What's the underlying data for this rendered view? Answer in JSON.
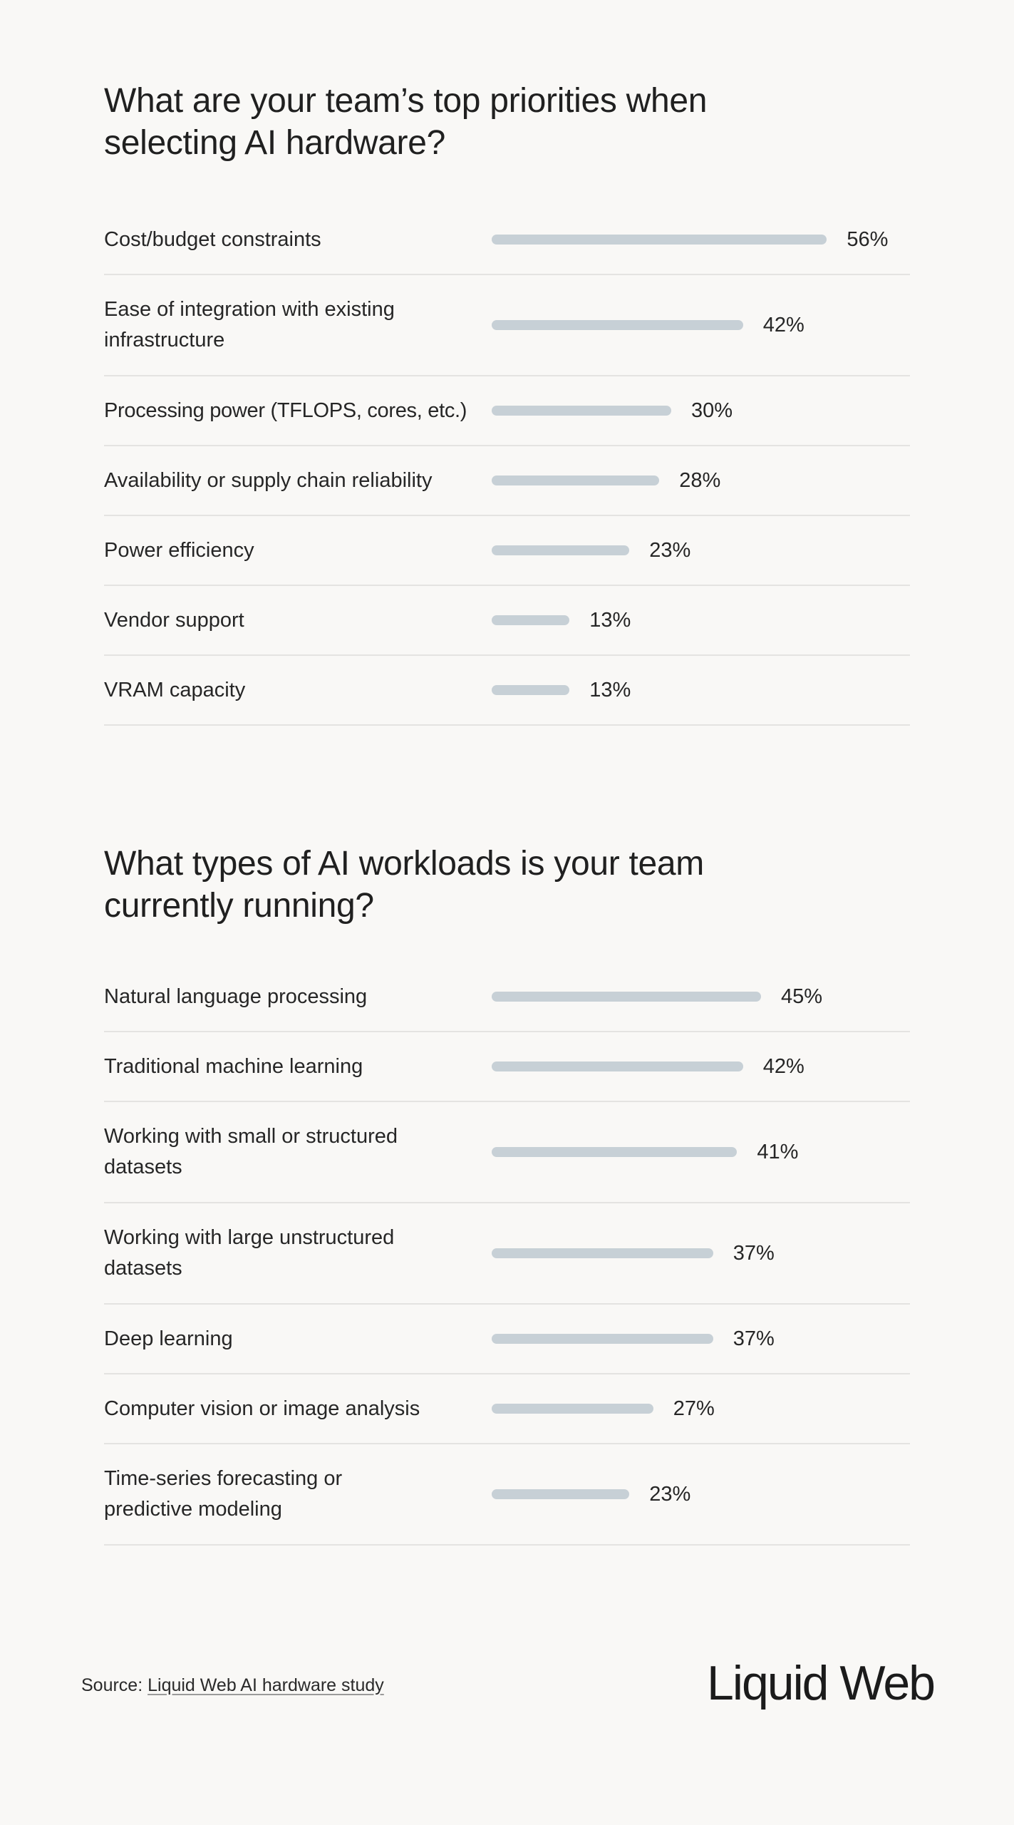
{
  "colors": {
    "background": "#f9f8f6",
    "bar": "#c7d0d6",
    "text": "#232323",
    "divider": "#e4e3e1"
  },
  "chart_data": [
    {
      "type": "bar",
      "orientation": "horizontal",
      "title": "What are your team’s top priorities when selecting AI hardware?",
      "categories": [
        "Cost/budget constraints",
        "Ease of integration with existing infrastructure",
        "Processing power (TFLOPS, cores, etc.)",
        "Availability or supply chain reliability",
        "Power efficiency",
        "Vendor support",
        "VRAM capacity"
      ],
      "values": [
        56,
        42,
        30,
        28,
        23,
        13,
        13
      ],
      "value_labels": [
        "56%",
        "42%",
        "30%",
        "28%",
        "23%",
        "13%",
        "13%"
      ],
      "xlabel": "",
      "ylabel": "",
      "unit": "%",
      "grid": false,
      "legend": null
    },
    {
      "type": "bar",
      "orientation": "horizontal",
      "title": "What types of AI workloads is your team currently running?",
      "categories": [
        "Natural language processing",
        "Traditional machine learning",
        "Working with small or structured datasets",
        "Working with large unstructured datasets",
        "Deep learning",
        "Computer vision or image analysis",
        "Time-series forecasting or predictive modeling"
      ],
      "values": [
        45,
        42,
        41,
        37,
        37,
        27,
        23
      ],
      "value_labels": [
        "45%",
        "42%",
        "41%",
        "37%",
        "37%",
        "27%",
        "23%"
      ],
      "xlabel": "",
      "ylabel": "",
      "unit": "%",
      "grid": false,
      "legend": null
    }
  ],
  "charts": [
    {
      "title": "What are your team’s top priorities when selecting AI hardware?",
      "rows": [
        {
          "label": "Cost/budget constraints",
          "value": 56,
          "display": "56%"
        },
        {
          "label": "Ease of integration with existing infrastructure",
          "value": 42,
          "display": "42%"
        },
        {
          "label": "Processing power (TFLOPS, cores, etc.)",
          "value": 30,
          "display": "30%"
        },
        {
          "label": "Availability or supply chain reliability",
          "value": 28,
          "display": "28%"
        },
        {
          "label": "Power efficiency",
          "value": 23,
          "display": "23%"
        },
        {
          "label": "Vendor support",
          "value": 13,
          "display": "13%"
        },
        {
          "label": "VRAM capacity",
          "value": 13,
          "display": "13%"
        }
      ]
    },
    {
      "title": "What types of AI workloads is your team currently running?",
      "rows": [
        {
          "label": "Natural language processing",
          "value": 45,
          "display": "45%"
        },
        {
          "label": "Traditional machine learning",
          "value": 42,
          "display": "42%"
        },
        {
          "label": "Working with small or structured datasets",
          "value": 41,
          "display": "41%"
        },
        {
          "label": "Working with large unstructured datasets",
          "value": 37,
          "display": "37%"
        },
        {
          "label": "Deep learning",
          "value": 37,
          "display": "37%"
        },
        {
          "label": "Computer vision or image analysis",
          "value": 27,
          "display": "27%"
        },
        {
          "label": "Time-series forecasting or predictive modeling",
          "value": 23,
          "display": "23%"
        }
      ]
    }
  ],
  "footer": {
    "source_prefix": "Source: ",
    "source_link": "Liquid Web AI hardware study",
    "logo": "Liquid Web"
  }
}
